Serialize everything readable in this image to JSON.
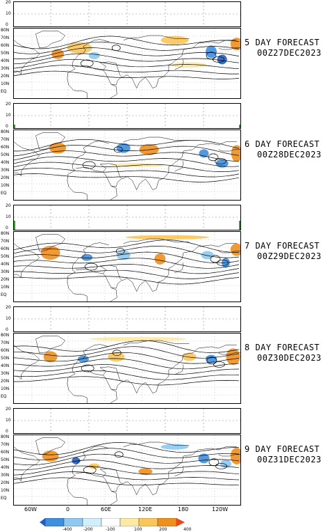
{
  "panels": [
    {
      "title": "5 DAY FORECAST",
      "date": "00Z27DEC2023"
    },
    {
      "title": "6 DAY FORECAST",
      "date": "00Z28DEC2023"
    },
    {
      "title": "7 DAY FORECAST",
      "date": "00Z29DEC2023"
    },
    {
      "title": "8 DAY FORECAST",
      "date": "00Z30DEC2023"
    },
    {
      "title": "9 DAY FORECAST",
      "date": "00Z31DEC2023"
    }
  ],
  "bar_ticks": [
    "20",
    "10",
    "0"
  ],
  "lat_labels": [
    "80N",
    "70N",
    "60N",
    "50N",
    "40N",
    "30N",
    "20N",
    "10N",
    "EQ"
  ],
  "lon_labels": [
    "60W",
    "0",
    "60E",
    "120E",
    "180",
    "120W"
  ],
  "colorbar": {
    "labels": [
      "-400",
      "-200",
      "-100",
      "100",
      "200",
      "400"
    ],
    "colors": [
      "#1f5fc9",
      "#3d8fe0",
      "#8ec9f2",
      "#cff0fb",
      "#ffffff",
      "#fde9a6",
      "#fbc55a",
      "#f08f1c",
      "#e8481a"
    ]
  }
}
